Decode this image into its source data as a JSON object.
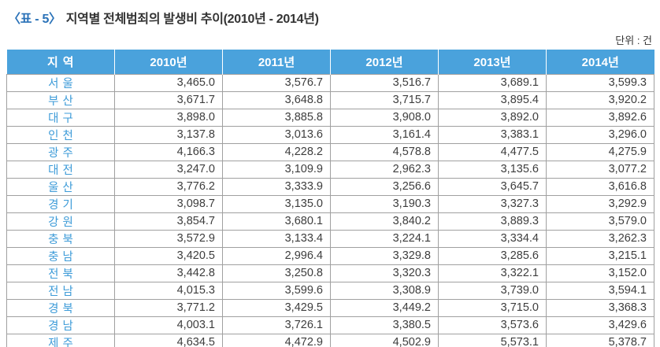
{
  "title": {
    "tag": "〈표 - 5〉",
    "text": "지역별 전체범죄의 발생비 추이(2010년 - 2014년)"
  },
  "unit_label": "단위 : 건",
  "colors": {
    "header_bg": "#4aa2dc",
    "header_text": "#ffffff",
    "region_text": "#3d9bd8",
    "title_accent": "#2a72b8",
    "grid_line": "#a0a0a0",
    "bottom_rule": "#4a4a4a"
  },
  "table": {
    "columns": [
      "지역",
      "2010년",
      "2011년",
      "2012년",
      "2013년",
      "2014년"
    ],
    "rows": [
      {
        "region": "서울",
        "values": [
          "3,465.0",
          "3,576.7",
          "3,516.7",
          "3,689.1",
          "3,599.3"
        ]
      },
      {
        "region": "부산",
        "values": [
          "3,671.7",
          "3,648.8",
          "3,715.7",
          "3,895.4",
          "3,920.2"
        ]
      },
      {
        "region": "대구",
        "values": [
          "3,898.0",
          "3,885.8",
          "3,908.0",
          "3,892.0",
          "3,892.6"
        ]
      },
      {
        "region": "인천",
        "values": [
          "3,137.8",
          "3,013.6",
          "3,161.4",
          "3,383.1",
          "3,296.0"
        ]
      },
      {
        "region": "광주",
        "values": [
          "4,166.3",
          "4,228.2",
          "4,578.8",
          "4,477.5",
          "4,275.9"
        ]
      },
      {
        "region": "대전",
        "values": [
          "3,247.0",
          "3,109.9",
          "2,962.3",
          "3,135.6",
          "3,077.2"
        ]
      },
      {
        "region": "울산",
        "values": [
          "3,776.2",
          "3,333.9",
          "3,256.6",
          "3,645.7",
          "3,616.8"
        ]
      },
      {
        "region": "경기",
        "values": [
          "3,098.7",
          "3,135.0",
          "3,190.3",
          "3,327.3",
          "3,292.9"
        ]
      },
      {
        "region": "강원",
        "values": [
          "3,854.7",
          "3,680.1",
          "3,840.2",
          "3,889.3",
          "3,579.0"
        ]
      },
      {
        "region": "충북",
        "values": [
          "3,572.9",
          "3,133.4",
          "3,224.1",
          "3,334.4",
          "3,262.3"
        ]
      },
      {
        "region": "충남",
        "values": [
          "3,420.5",
          "2,996.4",
          "3,329.8",
          "3,285.6",
          "3,215.1"
        ]
      },
      {
        "region": "전북",
        "values": [
          "3,442.8",
          "3,250.8",
          "3,320.3",
          "3,322.1",
          "3,152.0"
        ]
      },
      {
        "region": "전남",
        "values": [
          "4,015.3",
          "3,599.6",
          "3,308.9",
          "3,739.0",
          "3,594.1"
        ]
      },
      {
        "region": "경북",
        "values": [
          "3,771.2",
          "3,429.5",
          "3,449.2",
          "3,715.0",
          "3,368.3"
        ]
      },
      {
        "region": "경남",
        "values": [
          "4,003.1",
          "3,726.1",
          "3,380.5",
          "3,573.6",
          "3,429.6"
        ]
      },
      {
        "region": "제주",
        "values": [
          "4,634.5",
          "4,472.9",
          "4,502.9",
          "5,573.1",
          "5,378.7"
        ]
      }
    ]
  }
}
